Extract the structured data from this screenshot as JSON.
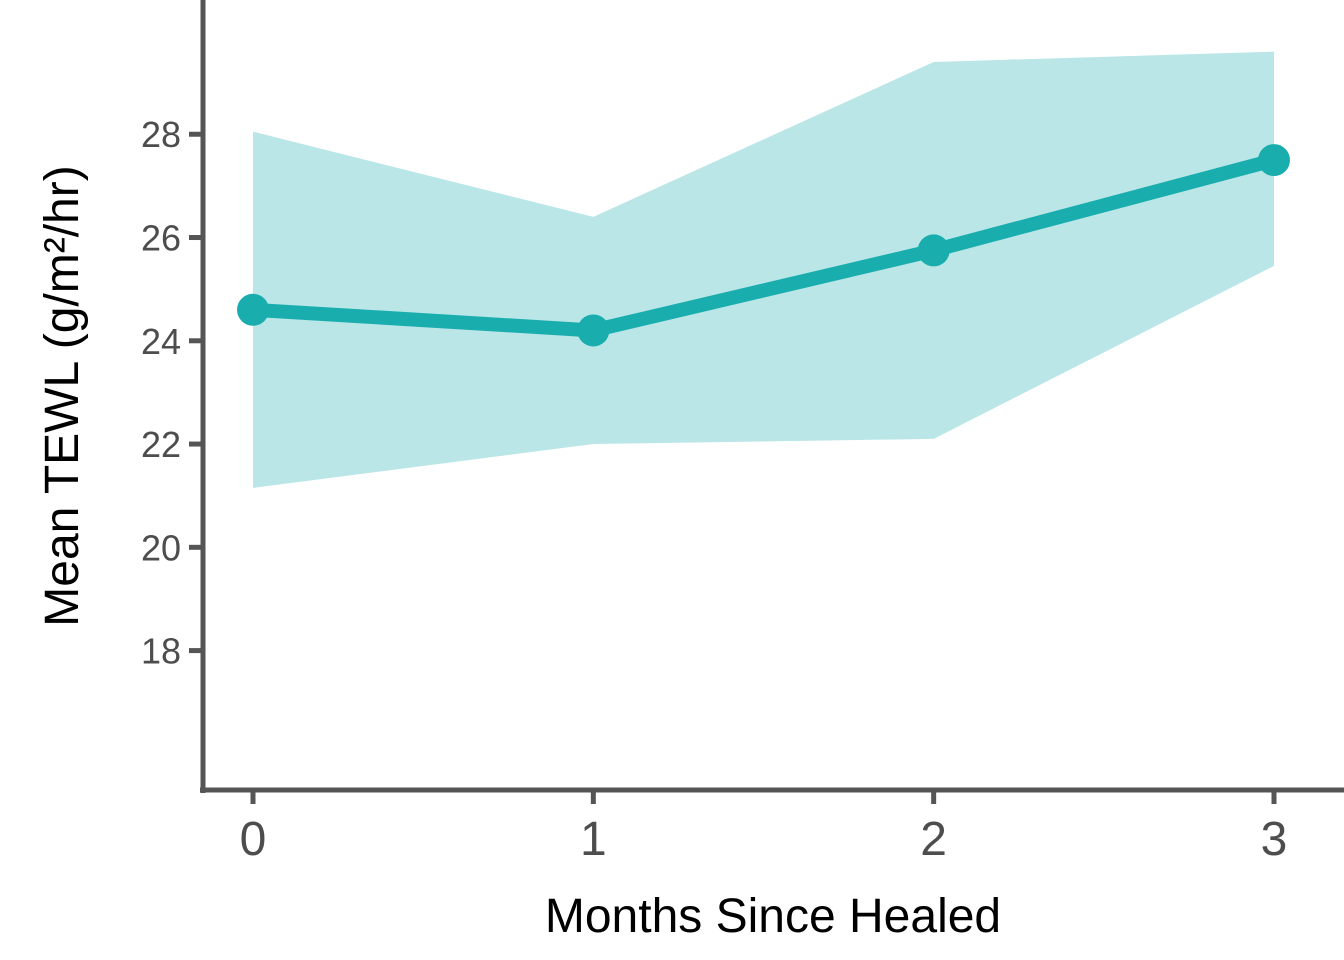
{
  "chart_data": {
    "type": "line",
    "title": "",
    "xlabel": "Months Since Healed",
    "ylabel": "Mean TEWL (g/m²/hr)",
    "x": [
      0,
      1,
      2,
      3
    ],
    "x_tick_labels": [
      "0",
      "1",
      "2",
      "3"
    ],
    "y_ticks": [
      18,
      20,
      22,
      24,
      26,
      28
    ],
    "y_tick_labels": [
      "18",
      "20",
      "22",
      "24",
      "26",
      "28"
    ],
    "xlim": [
      -0.15,
      3.15
    ],
    "ylim": [
      15.3,
      30.6
    ],
    "series": [
      {
        "values": [
          24.6,
          24.2,
          25.75,
          27.5
        ],
        "ci_lower": [
          21.15,
          22.0,
          22.1,
          25.45
        ],
        "ci_upper": [
          28.05,
          26.4,
          29.4,
          29.6
        ]
      }
    ],
    "grid": false,
    "legend": "none",
    "colors": {
      "line": "#1AADAE",
      "ribbon": "#BAE6E8",
      "axis": "#555555"
    }
  }
}
